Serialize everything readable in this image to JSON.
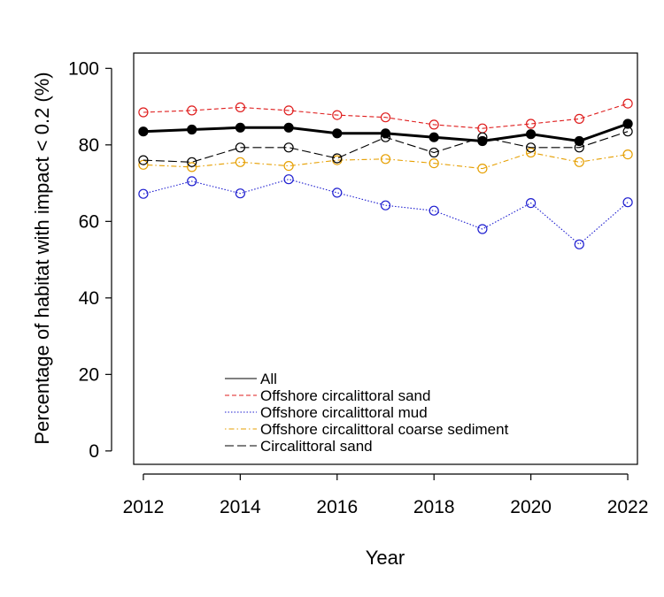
{
  "chart_data": {
    "type": "line",
    "title": "",
    "xlabel": "Year",
    "ylabel": "Percentage of habitat with impact < 0.2 (%)",
    "x": [
      2012,
      2013,
      2014,
      2015,
      2016,
      2017,
      2018,
      2019,
      2020,
      2021,
      2022
    ],
    "xlim": [
      2011.8,
      2022.2
    ],
    "ylim": [
      -3.5,
      104
    ],
    "xticks": [
      2012,
      2014,
      2016,
      2018,
      2020,
      2022
    ],
    "xtick_labels": [
      "2012",
      "2014",
      "2016",
      "2018",
      "2020",
      "2022"
    ],
    "yticks": [
      0,
      20,
      40,
      60,
      80,
      100
    ],
    "ytick_labels": [
      "0",
      "20",
      "40",
      "60",
      "80",
      "100"
    ],
    "grid": false,
    "legend_position": "bottom-left",
    "series": [
      {
        "name": "All",
        "color": "#000000",
        "linestyle": "solid",
        "marker": "filled-circle",
        "values": [
          83.5,
          84.0,
          84.5,
          84.5,
          83.0,
          83.0,
          82.0,
          81.0,
          82.8,
          81.0,
          85.5
        ]
      },
      {
        "name": "Offshore circalittoral sand",
        "color": "#DF1D1D",
        "linestyle": "dashed",
        "marker": "open-circle",
        "values": [
          88.5,
          89.0,
          89.8,
          89.0,
          87.8,
          87.2,
          85.3,
          84.3,
          85.5,
          86.8,
          90.8
        ]
      },
      {
        "name": "Offshore circalittoral mud",
        "color": "#1E1ED0",
        "linestyle": "dotted",
        "marker": "open-circle",
        "values": [
          67.2,
          70.5,
          67.3,
          71.0,
          67.5,
          64.2,
          62.8,
          58.0,
          64.8,
          54.0,
          65.0
        ]
      },
      {
        "name": "Offshore circalittoral coarse sediment",
        "color": "#E69F00",
        "linestyle": "dotdash",
        "marker": "open-circle",
        "values": [
          74.8,
          74.2,
          75.5,
          74.5,
          76.0,
          76.3,
          75.2,
          73.8,
          78.0,
          75.5,
          77.5
        ]
      },
      {
        "name": "Circalittoral sand",
        "color": "#000000",
        "linestyle": "longdash",
        "marker": "open-circle",
        "values": [
          76.0,
          75.5,
          79.3,
          79.3,
          76.5,
          82.0,
          78.0,
          82.0,
          79.3,
          79.3,
          83.5
        ]
      }
    ]
  }
}
